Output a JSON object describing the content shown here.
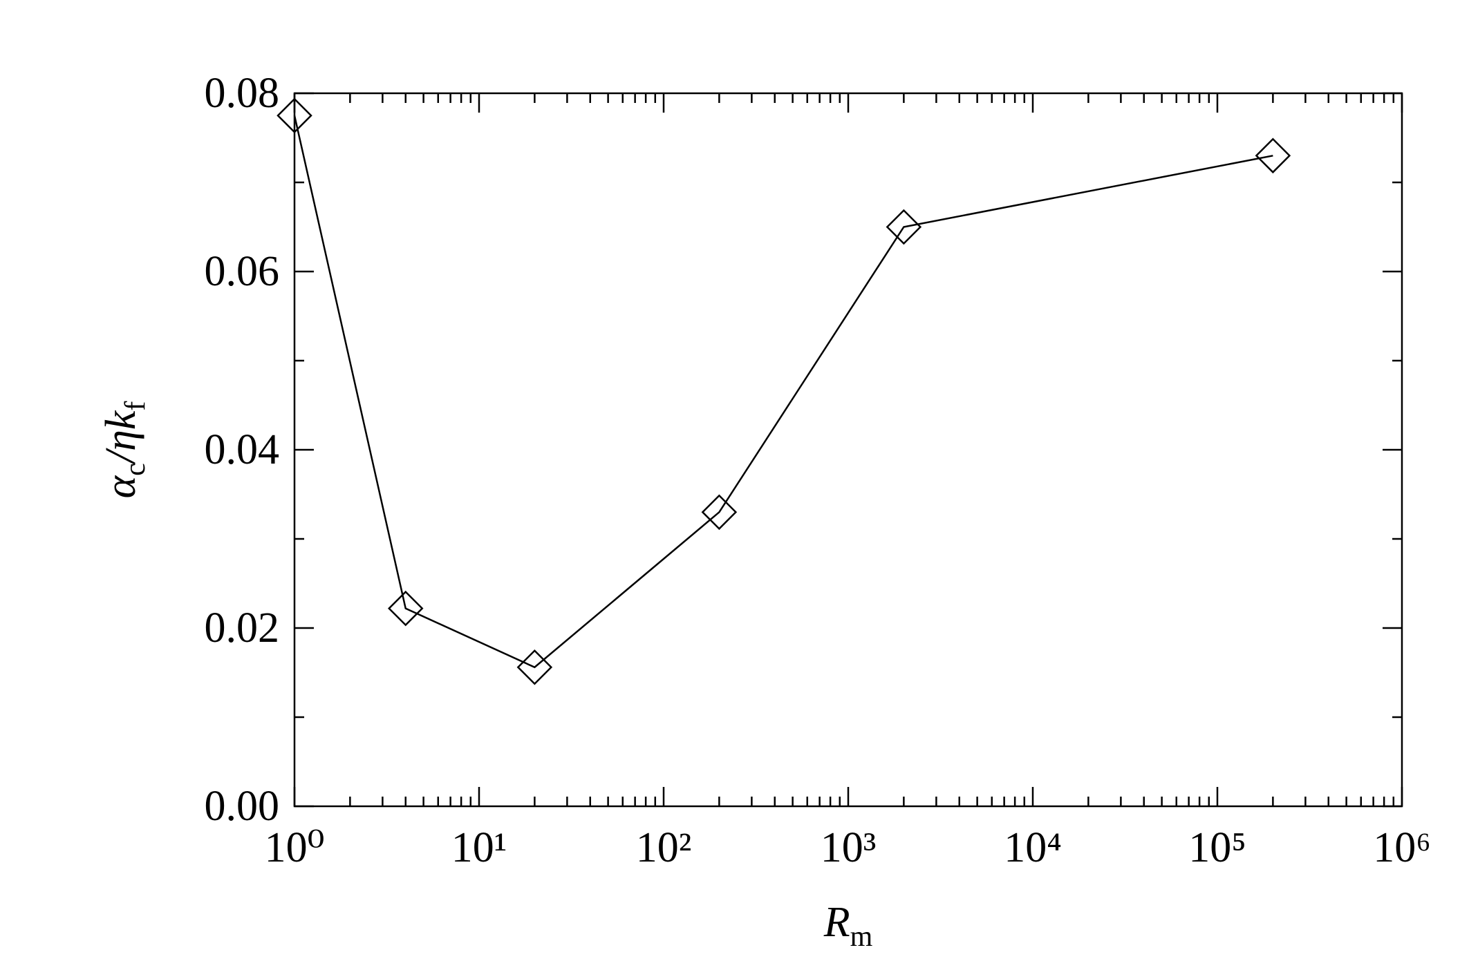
{
  "chart_data": {
    "type": "line",
    "xlabel": [
      "R",
      "m"
    ],
    "ylabel": [
      "α",
      "c",
      "/ηk",
      "f"
    ],
    "x": [
      1,
      4,
      20,
      200,
      2000,
      200000
    ],
    "series": [
      {
        "values": [
          0.0775,
          0.0222,
          0.0156,
          0.033,
          0.065,
          0.073
        ],
        "color": "#000000",
        "marker": "diamond"
      }
    ],
    "xscale": "log",
    "xlim": [
      1,
      1000000
    ],
    "xticks": [
      {
        "value": 1,
        "label": "10⁰"
      },
      {
        "value": 10,
        "label": "10¹"
      },
      {
        "value": 100,
        "label": "10²"
      },
      {
        "value": 1000,
        "label": "10³"
      },
      {
        "value": 10000,
        "label": "10⁴"
      },
      {
        "value": 100000,
        "label": "10⁵"
      },
      {
        "value": 1000000,
        "label": "10⁶"
      }
    ],
    "ylim": [
      0,
      0.08
    ],
    "yticks": [
      {
        "value": 0,
        "label": "0.00"
      },
      {
        "value": 0.02,
        "label": "0.02"
      },
      {
        "value": 0.04,
        "label": "0.04"
      },
      {
        "value": 0.06,
        "label": "0.06"
      },
      {
        "value": 0.08,
        "label": "0.08"
      }
    ],
    "grid": false
  }
}
